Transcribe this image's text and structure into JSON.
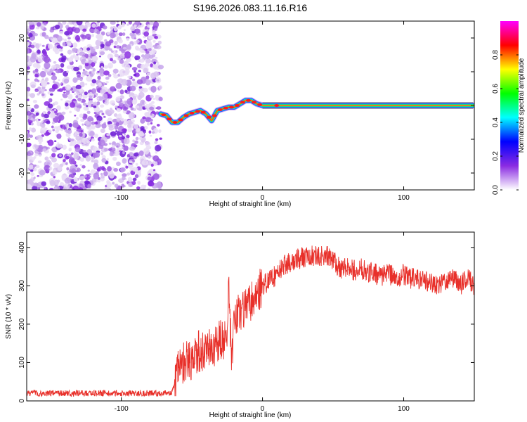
{
  "title": "S196.2026.083.11.16.R16",
  "chart_data": [
    {
      "type": "heatmap",
      "name": "spectrogram",
      "xlabel": "Height of straight line (km)",
      "ylabel": "Frequency (Hz)",
      "xlim": [
        -167,
        150
      ],
      "ylim": [
        -25,
        25
      ],
      "xticks": [
        -100,
        0,
        100
      ],
      "yticks": [
        -20,
        -10,
        0,
        10,
        20
      ],
      "noise_region_x": [
        -167,
        -72
      ],
      "signal_track": {
        "x": [
          -72,
          -68,
          -64,
          -60,
          -56,
          -52,
          -48,
          -44,
          -40,
          -36,
          -32,
          -28,
          -24,
          -20,
          -16,
          -12,
          -8,
          -4,
          0,
          20,
          40,
          60,
          80,
          100,
          120,
          150
        ],
        "y": [
          -2.5,
          -3,
          -5,
          -5,
          -3.5,
          -2.5,
          -2,
          -1.5,
          -2.5,
          -4.5,
          -1.5,
          -1,
          -0.5,
          -0.5,
          0.5,
          1.5,
          1.5,
          0.5,
          0,
          0,
          0,
          0,
          0,
          0,
          0,
          0
        ]
      },
      "colorbar": {
        "label": "Normalized spectral amplitude",
        "ticks": [
          "0.0",
          "0.2",
          "0.4",
          "0.6",
          "0.8"
        ],
        "range": [
          0,
          1
        ],
        "colors": [
          "#ffffff",
          "#8a2be2",
          "#0000ff",
          "#00ffff",
          "#00ff00",
          "#ffff00",
          "#ff0000",
          "#ff00ff"
        ]
      }
    },
    {
      "type": "line",
      "name": "snr",
      "xlabel": "Height of straight line (km)",
      "ylabel": "SNR (10 * v/v)",
      "xlim": [
        -167,
        150
      ],
      "ylim": [
        0,
        440
      ],
      "xticks": [
        -100,
        0,
        100
      ],
      "yticks": [
        0,
        100,
        200,
        300,
        400
      ],
      "color": "#e8302a",
      "series": [
        {
          "name": "SNR",
          "x": [
            -167,
            -140,
            -100,
            -80,
            -70,
            -64,
            -60,
            -55,
            -50,
            -45,
            -40,
            -35,
            -30,
            -25,
            -24,
            -22,
            -20,
            -15,
            -10,
            -5,
            0,
            5,
            10,
            15,
            20,
            25,
            30,
            35,
            40,
            45,
            50,
            55,
            60,
            65,
            70,
            75,
            80,
            85,
            90,
            95,
            100,
            105,
            110,
            115,
            120,
            125,
            130,
            135,
            140,
            145,
            150
          ],
          "y": [
            20,
            20,
            20,
            20,
            20,
            22,
            85,
            100,
            110,
            130,
            130,
            140,
            160,
            150,
            320,
            100,
            200,
            240,
            250,
            275,
            300,
            315,
            330,
            355,
            360,
            370,
            375,
            380,
            375,
            380,
            365,
            345,
            350,
            340,
            345,
            335,
            330,
            325,
            330,
            320,
            330,
            320,
            315,
            310,
            310,
            300,
            310,
            320,
            300,
            320,
            300
          ]
        }
      ]
    }
  ]
}
